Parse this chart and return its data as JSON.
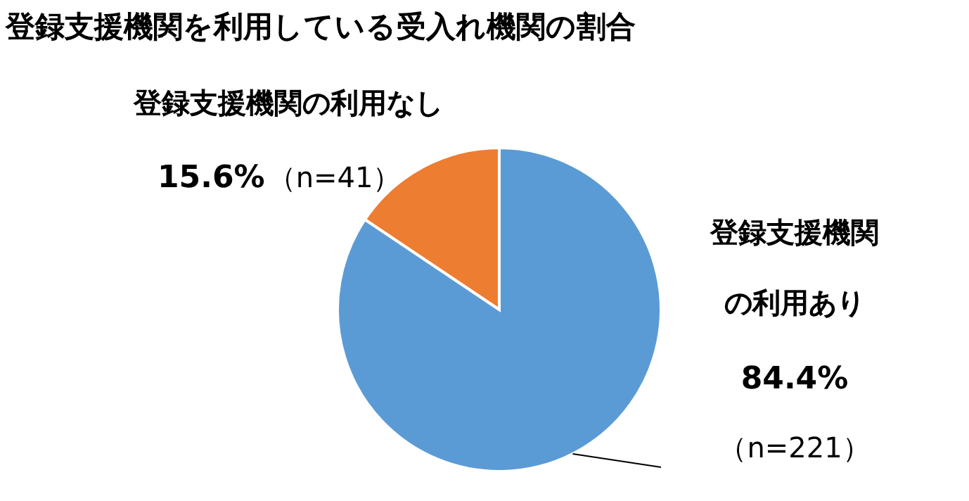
{
  "chart_data": {
    "type": "pie",
    "title": "登録支援機関を利用している受入れ機関の割合",
    "categories": [
      "登録支援機関の利用あり",
      "登録支援機関の利用なし"
    ],
    "values": [
      84.4,
      15.6
    ],
    "colors": [
      "#5b9bd5",
      "#ed7d31"
    ],
    "value_labels": [
      "84.4%",
      "15.6%"
    ],
    "annotations": [
      "（n=221）",
      "（n=41）"
    ]
  }
}
